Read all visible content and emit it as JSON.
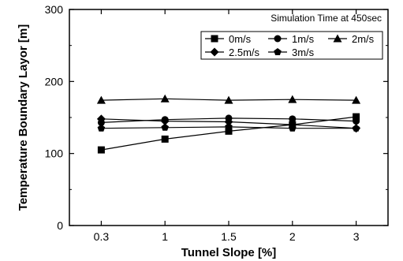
{
  "chart_data": {
    "type": "line",
    "annotation": "Simulation Time at 450sec",
    "xlabel": "Tunnel Slope [%]",
    "ylabel": "Temperature Boundary Layor [m]",
    "categories": [
      "0.3",
      "1",
      "1.5",
      "2",
      "3"
    ],
    "ylim": [
      0,
      300
    ],
    "yticks": [
      0,
      100,
      200,
      300
    ],
    "grid": false,
    "legend_position": "top-right",
    "series": [
      {
        "name": "0m/s",
        "marker": "square",
        "values": [
          105,
          120,
          131,
          140,
          151
        ]
      },
      {
        "name": "1m/s",
        "marker": "circle",
        "values": [
          143,
          147,
          149,
          148,
          145
        ]
      },
      {
        "name": "2m/s",
        "marker": "triangle",
        "values": [
          174,
          176,
          174,
          175,
          174
        ]
      },
      {
        "name": "2.5m/s",
        "marker": "diamond",
        "values": [
          148,
          145,
          144,
          140,
          135
        ]
      },
      {
        "name": "3m/s",
        "marker": "pentagon",
        "values": [
          135,
          136,
          137,
          135,
          135
        ]
      }
    ],
    "colors": {
      "line": "#000000",
      "background": "#ffffff"
    }
  }
}
